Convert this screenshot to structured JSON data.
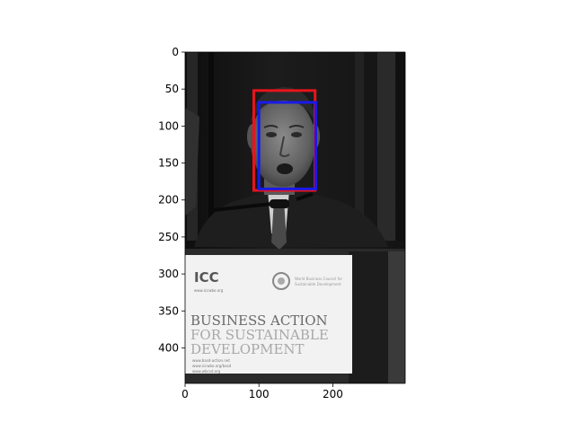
{
  "figure": {
    "x_ticks": [
      "0",
      "100",
      "200"
    ],
    "y_ticks": [
      "0",
      "50",
      "100",
      "150",
      "200",
      "250",
      "300",
      "350",
      "400"
    ]
  },
  "image": {
    "description_tone": "grayscale",
    "sign": {
      "logo": "ICC",
      "logo_sub": "www.iccwbo.org",
      "partner_text_1": "World Business Council for",
      "partner_text_2": "Sustainable Development",
      "line1": "BUSINESS ACTION",
      "line2": "FOR SUSTAINABLE",
      "line3": "DEVELOPMENT",
      "url1": "www.basd-action.net",
      "url2": "www.iccwbo.org/basd",
      "url3": "www.wbcsd.org"
    }
  },
  "annotations": {
    "colors": {
      "outer_box": "#e8141b",
      "inner_box": "#1a1ae8"
    }
  },
  "chart_data": {
    "type": "image-with-bounding-boxes",
    "image_extent": {
      "x": [
        0,
        298
      ],
      "y": [
        448,
        0
      ]
    },
    "xlim": [
      0,
      298
    ],
    "ylim": [
      448,
      0
    ],
    "x_ticks": [
      0,
      100,
      200
    ],
    "y_ticks": [
      0,
      50,
      100,
      150,
      200,
      250,
      300,
      350,
      400
    ],
    "boxes": [
      {
        "color": "red",
        "x": [
          93,
          176
        ],
        "y": [
          52,
          187
        ]
      },
      {
        "color": "blue",
        "x": [
          100,
          177
        ],
        "y": [
          68,
          185
        ]
      }
    ]
  }
}
